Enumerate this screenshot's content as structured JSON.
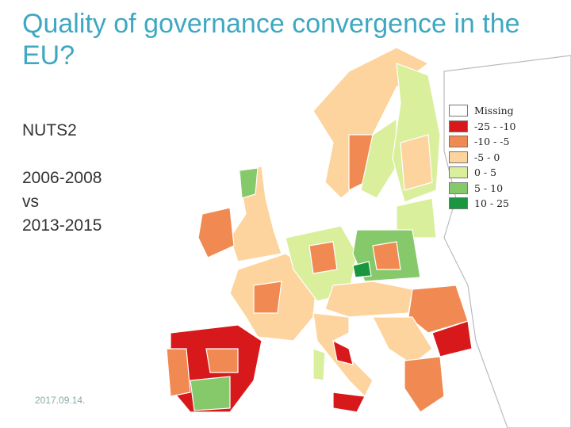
{
  "title": "Quality of governance convergence in the EU?",
  "sidebar": {
    "level": "NUTS2",
    "period_a": "2006-2008",
    "versus": "vs",
    "period_b": "2013-2015"
  },
  "footer": {
    "date": "2017.09.14."
  },
  "legend": {
    "items": [
      {
        "label": "Missing",
        "color": "#ffffff"
      },
      {
        "label": "-25 - -10",
        "color": "#d7191c"
      },
      {
        "label": "-10 - -5",
        "color": "#f08a52"
      },
      {
        "label": "-5 - 0",
        "color": "#fdd49e"
      },
      {
        "label": "0 - 5",
        "color": "#d9ef9c"
      },
      {
        "label": "5 - 10",
        "color": "#86c96a"
      },
      {
        "label": "10 - 25",
        "color": "#1a9641"
      }
    ]
  }
}
